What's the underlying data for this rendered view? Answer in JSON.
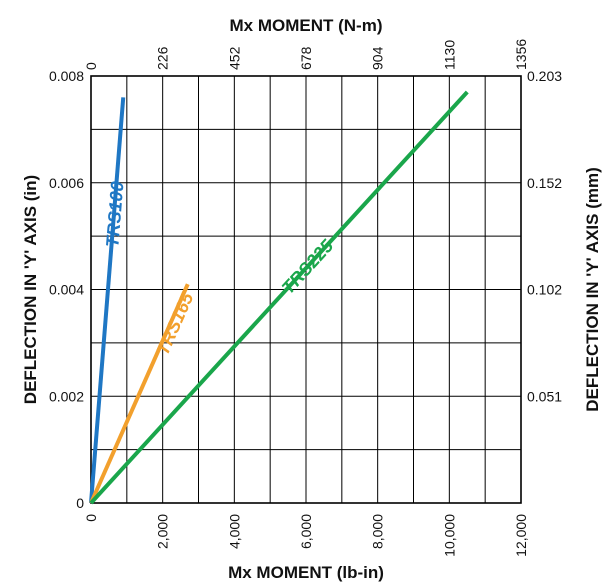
{
  "chart_data": {
    "type": "line",
    "xlabel_bottom": "Mx MOMENT (lb-in)",
    "xlabel_top": "Mx MOMENT (N-m)",
    "ylabel_left": "DEFLECTION IN 'Y' AXIS (in)",
    "ylabel_right": "DEFLECTION IN 'Y' AXIS (mm)",
    "xlim": [
      0,
      12000
    ],
    "ylim": [
      0,
      0.008
    ],
    "grid": true,
    "x_ticks_bottom": [
      "0",
      "2,000",
      "4,000",
      "6,000",
      "8,000",
      "10,000",
      "12,000"
    ],
    "x_ticks_top": [
      "0",
      "226",
      "452",
      "678",
      "904",
      "1130",
      "1356"
    ],
    "y_ticks_left": [
      "0",
      "0.002",
      "0.004",
      "0.006",
      "0.008"
    ],
    "y_ticks_right": [
      "0.051",
      "0.102",
      "0.152",
      "0.203"
    ],
    "series": [
      {
        "name": "TRS100",
        "color": "#1f77c4",
        "x": [
          0,
          900
        ],
        "y": [
          0,
          0.0076
        ]
      },
      {
        "name": "TRS165",
        "color": "#f2a02d",
        "x": [
          0,
          2700
        ],
        "y": [
          0,
          0.0041
        ]
      },
      {
        "name": "TRS225",
        "color": "#1aa64b",
        "x": [
          0,
          10500
        ],
        "y": [
          0,
          0.0077
        ]
      }
    ]
  }
}
